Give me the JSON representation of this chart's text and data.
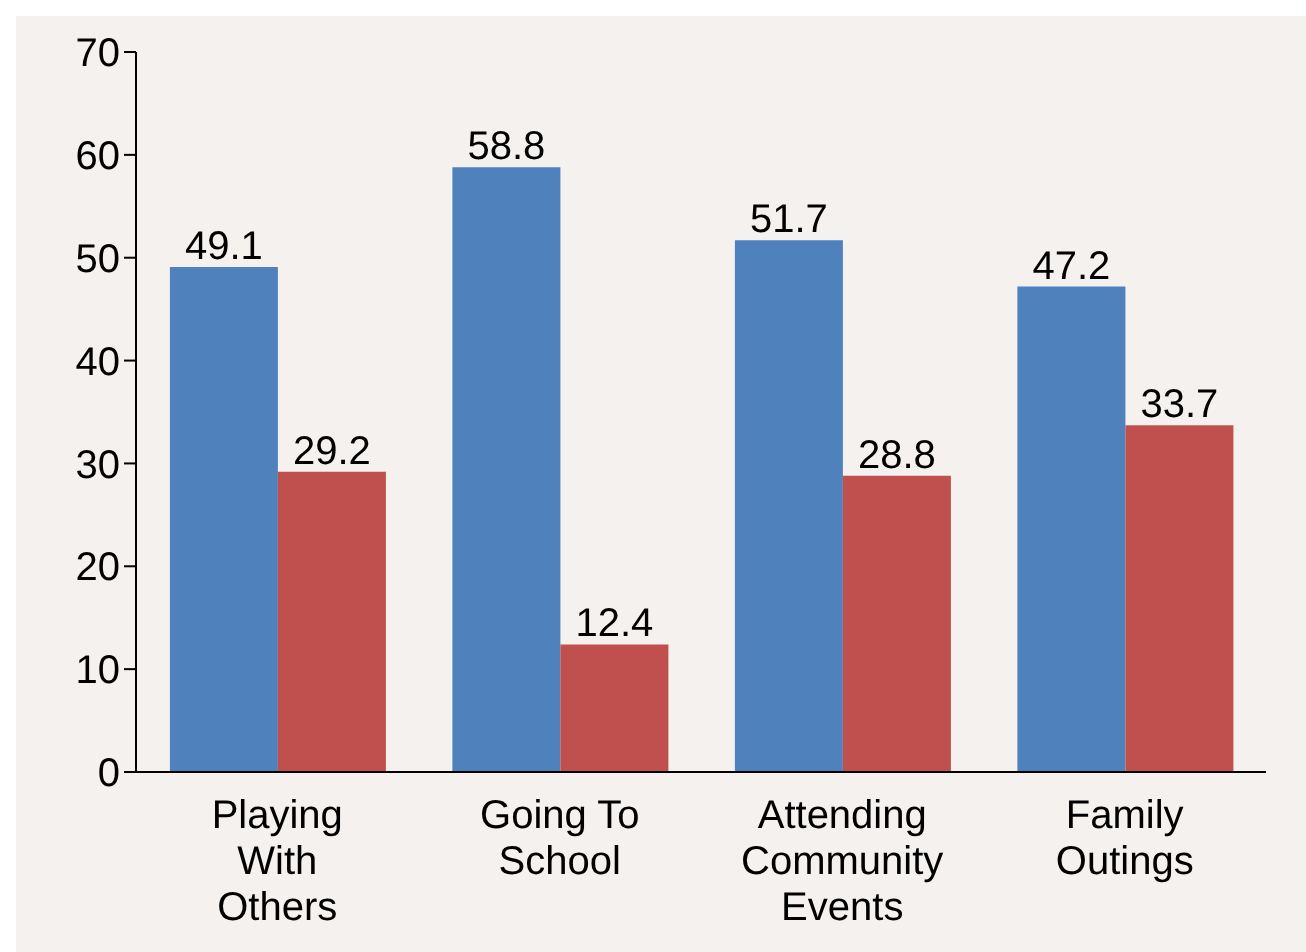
{
  "chart_data": {
    "type": "bar",
    "categories": [
      "Playing With Others",
      "Going To School",
      "Attending Community Events",
      "Family Outings"
    ],
    "series": [
      {
        "color": "#4f81bd",
        "values": [
          49.1,
          58.8,
          51.7,
          47.2
        ]
      },
      {
        "color": "#c0504d",
        "values": [
          29.2,
          12.4,
          28.8,
          33.7
        ]
      }
    ],
    "ylim": [
      0,
      70
    ],
    "yticks": [
      0,
      10,
      20,
      30,
      40,
      50,
      60,
      70
    ],
    "data_labels": true,
    "grid": false,
    "legend": false
  }
}
